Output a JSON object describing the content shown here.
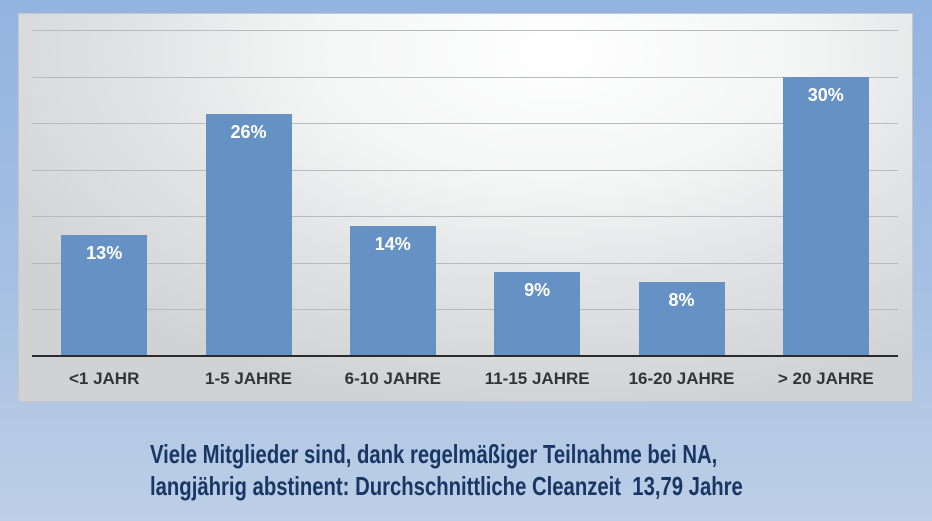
{
  "chart_data": {
    "type": "bar",
    "categories": [
      "<1 JAHR",
      "1-5 JAHRE",
      "6-10 JAHRE",
      "11-15 JAHRE",
      "16-20 JAHRE",
      "> 20 JAHRE"
    ],
    "values": [
      13,
      26,
      14,
      9,
      8,
      30
    ],
    "value_labels": [
      "13%",
      "26%",
      "14%",
      "9%",
      "8%",
      "30%"
    ],
    "title": "",
    "xlabel": "",
    "ylabel": "",
    "ylim": [
      0,
      35
    ],
    "gridline_step": 5,
    "grid": true,
    "legend": false,
    "value_labels_position": "inside-top",
    "y_axis_tick_labels_visible": false
  },
  "caption": {
    "line1": "Viele Mitglieder sind, dank regelmäßiger Teilnahme bei NA,",
    "line2": "langjährig abstinent: Durchschnittliche Cleanzeit  13,79 Jahre"
  },
  "colors": {
    "bar": "#6591c5",
    "bar_label": "#ffffff",
    "background_top": "#92b4e1",
    "background_bottom": "#bdcfe6",
    "plot_base": "#d0d2d4",
    "gridline": "#b9babc",
    "axis_line": "#2b2b2b",
    "category_label": "#343434",
    "caption_text": "#1a3665"
  }
}
